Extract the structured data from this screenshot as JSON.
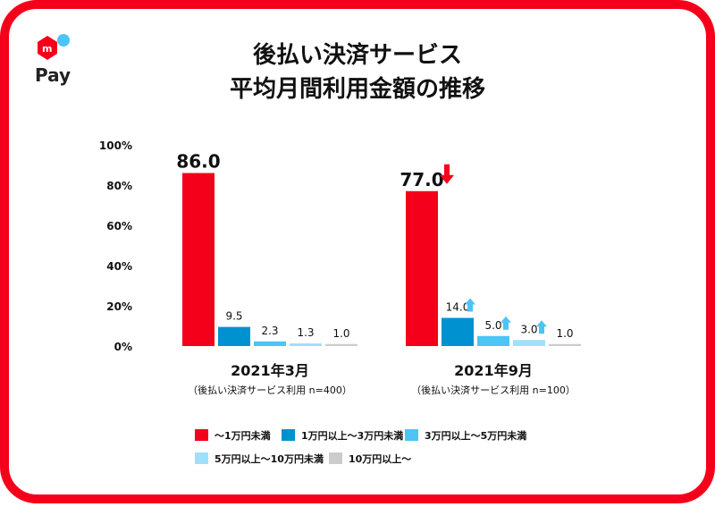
{
  "brand": {
    "logo_text": "Pay",
    "logo_mark": "m",
    "colors": {
      "border": "#f5001b",
      "dot": "#4cc4f5"
    }
  },
  "chart_data": {
    "type": "bar",
    "title": [
      "後払い決済サービス",
      "平均月間利用金額の推移"
    ],
    "xlabel": "",
    "ylabel": "",
    "ylim": [
      0,
      100
    ],
    "y_ticks": [
      "0%",
      "20%",
      "40%",
      "60%",
      "80%",
      "100%"
    ],
    "y_tick_values": [
      0,
      20,
      40,
      60,
      80,
      100
    ],
    "groups": [
      {
        "label": "2021年3月",
        "sublabel": "（後払い決済サービス利用 n=400）",
        "values": [
          86.0,
          9.5,
          2.3,
          1.3,
          1.0
        ],
        "value_labels": [
          "86.0",
          "9.5",
          "2.3",
          "1.3",
          "1.0"
        ],
        "trend": [
          "",
          "",
          "",
          "",
          ""
        ]
      },
      {
        "label": "2021年9月",
        "sublabel": "（後払い決済サービス利用 n=100）",
        "values": [
          77.0,
          14.0,
          5.0,
          3.0,
          1.0
        ],
        "value_labels": [
          "77.0",
          "14.0",
          "5.0",
          "3.0",
          "1.0"
        ],
        "trend": [
          "down",
          "up",
          "up",
          "up",
          ""
        ]
      }
    ],
    "series": [
      {
        "name": "～1万円未満",
        "color": "#f5001b"
      },
      {
        "name": "1万円以上～3万円未満",
        "color": "#0091d0"
      },
      {
        "name": "3万円以上～5万円未満",
        "color": "#4cc4f5"
      },
      {
        "name": "5万円以上～10万円未満",
        "color": "#9ee0fa"
      },
      {
        "name": "10万円以上～",
        "color": "#cccccc"
      }
    ],
    "arrow_colors": {
      "down": "#f5001b",
      "up": "#4cc4f5"
    },
    "legend_position": "bottom",
    "grid": false
  }
}
